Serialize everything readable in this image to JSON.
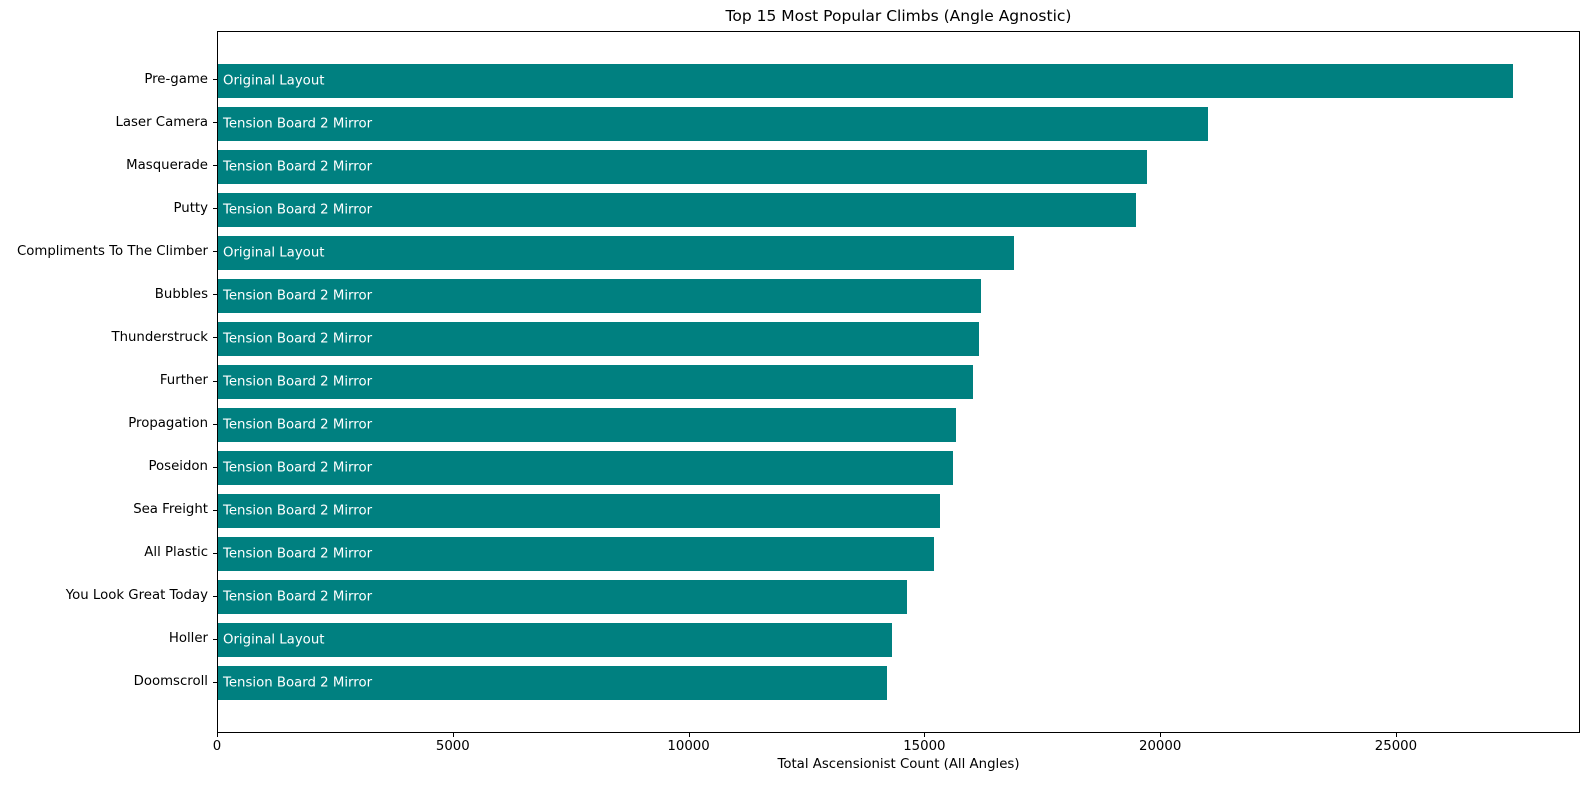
{
  "figure": {
    "title": "Top 15 Most Popular Climbs (Angle Agnostic)",
    "xlabel": "Total Ascensionist Count (All Angles)"
  },
  "chart_data": {
    "type": "bar",
    "orientation": "horizontal",
    "title": "Top 15 Most Popular Climbs (Angle Agnostic)",
    "xlabel": "Total Ascensionist Count (All Angles)",
    "ylabel": "",
    "xlim": [
      0,
      28860
    ],
    "x_ticks": [
      0,
      5000,
      10000,
      15000,
      20000,
      25000
    ],
    "grid": false,
    "legend": false,
    "bar_color": "#008080",
    "bar_label_color": "#ffffff",
    "categories": [
      "Pre-game",
      "Laser Camera",
      "Masquerade",
      "Putty",
      "Compliments To The Climber",
      "Bubbles",
      "Thunderstruck",
      "Further",
      "Propagation",
      "Poseidon",
      "Sea Freight",
      "All Plastic",
      "You Look Great Today",
      "Holler",
      "Doomscroll"
    ],
    "values": [
      27460,
      21000,
      19690,
      19460,
      16880,
      16190,
      16140,
      16000,
      15640,
      15580,
      15300,
      15190,
      14620,
      14300,
      14180
    ],
    "bar_labels": [
      "Original Layout",
      "Tension Board 2 Mirror",
      "Tension Board 2 Mirror",
      "Tension Board 2 Mirror",
      "Original Layout",
      "Tension Board 2 Mirror",
      "Tension Board 2 Mirror",
      "Tension Board 2 Mirror",
      "Tension Board 2 Mirror",
      "Tension Board 2 Mirror",
      "Tension Board 2 Mirror",
      "Tension Board 2 Mirror",
      "Tension Board 2 Mirror",
      "Original Layout",
      "Tension Board 2 Mirror"
    ]
  }
}
